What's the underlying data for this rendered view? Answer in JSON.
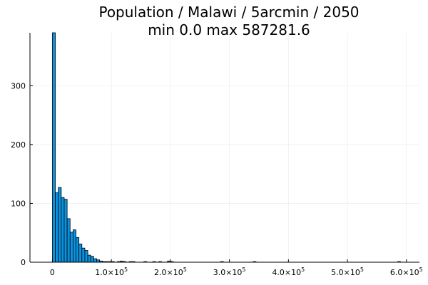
{
  "chart_data": {
    "type": "bar",
    "title_line1": "Population / Malawi / 5arcmin / 2050",
    "title_line2": "min 0.0  max 587281.6",
    "xlabel": "",
    "ylabel": "",
    "xlim": [
      -38000,
      622000
    ],
    "ylim": [
      0,
      390
    ],
    "bin_width": 5000,
    "x_ticks": [
      {
        "value": 0,
        "mantissa": "0",
        "exp": ""
      },
      {
        "value": 100000,
        "mantissa": "1.0×10",
        "exp": "5"
      },
      {
        "value": 200000,
        "mantissa": "2.0×10",
        "exp": "5"
      },
      {
        "value": 300000,
        "mantissa": "3.0×10",
        "exp": "5"
      },
      {
        "value": 400000,
        "mantissa": "4.0×10",
        "exp": "5"
      },
      {
        "value": 500000,
        "mantissa": "5.0×10",
        "exp": "5"
      },
      {
        "value": 600000,
        "mantissa": "6.0×10",
        "exp": "5"
      }
    ],
    "y_ticks": [
      0,
      100,
      200,
      300
    ],
    "grid": true,
    "legend": "none",
    "bar_color": "#0a93e0",
    "bins": [
      {
        "x": 0,
        "count": 390
      },
      {
        "x": 5000,
        "count": 118
      },
      {
        "x": 10000,
        "count": 127
      },
      {
        "x": 15000,
        "count": 110
      },
      {
        "x": 20000,
        "count": 107
      },
      {
        "x": 25000,
        "count": 74
      },
      {
        "x": 30000,
        "count": 51
      },
      {
        "x": 35000,
        "count": 55
      },
      {
        "x": 40000,
        "count": 42
      },
      {
        "x": 45000,
        "count": 31
      },
      {
        "x": 50000,
        "count": 24
      },
      {
        "x": 55000,
        "count": 20
      },
      {
        "x": 60000,
        "count": 12
      },
      {
        "x": 65000,
        "count": 10
      },
      {
        "x": 70000,
        "count": 6
      },
      {
        "x": 75000,
        "count": 4
      },
      {
        "x": 80000,
        "count": 2
      },
      {
        "x": 85000,
        "count": 1
      },
      {
        "x": 90000,
        "count": 1
      },
      {
        "x": 95000,
        "count": 1
      },
      {
        "x": 100000,
        "count": 1
      },
      {
        "x": 110000,
        "count": 1
      },
      {
        "x": 115000,
        "count": 2
      },
      {
        "x": 120000,
        "count": 1
      },
      {
        "x": 130000,
        "count": 1
      },
      {
        "x": 135000,
        "count": 1
      },
      {
        "x": 155000,
        "count": 1
      },
      {
        "x": 170000,
        "count": 1
      },
      {
        "x": 180000,
        "count": 1
      },
      {
        "x": 195000,
        "count": 2
      },
      {
        "x": 200000,
        "count": 1
      },
      {
        "x": 285000,
        "count": 1
      },
      {
        "x": 340000,
        "count": 1
      },
      {
        "x": 585000,
        "count": 1
      }
    ]
  }
}
